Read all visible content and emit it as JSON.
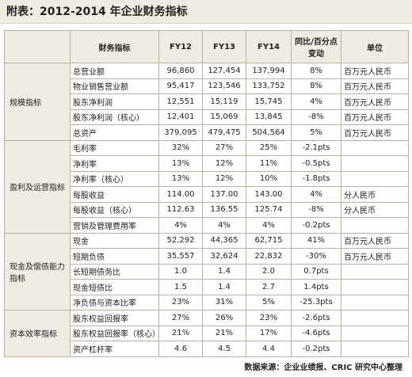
{
  "header": {
    "title": "附表：2012-2014 年企业财务指标"
  },
  "table": {
    "columns": [
      "财务指标",
      "FY12",
      "FY13",
      "FY14",
      "同比/百分点变动",
      "单位"
    ],
    "groups": [
      {
        "name": "规模指标",
        "rows": [
          [
            "总营业额",
            "96,860",
            "127,454",
            "137,994",
            "8%",
            "百万元人民币"
          ],
          [
            "物业销售营业额",
            "95,417",
            "123,546",
            "133,752",
            "8%",
            "百万元人民币"
          ],
          [
            "股东净利润",
            "12,551",
            "15,119",
            "15,745",
            "4%",
            "百万元人民币"
          ],
          [
            "股东净利润（核心）",
            "12,401",
            "15,069",
            "13,845",
            "-8%",
            "百万元人民币"
          ],
          [
            "总资产",
            "379,095",
            "479,475",
            "504,564",
            "5%",
            "百万元人民币"
          ]
        ]
      },
      {
        "name": "盈利及运营指标",
        "rows": [
          [
            "毛利率",
            "32%",
            "27%",
            "25%",
            "-2.1pts"
          ],
          [
            "净利率",
            "13%",
            "12%",
            "11%",
            "-0.5pts"
          ],
          [
            "净利率（核心）",
            "13%",
            "12%",
            "10%",
            "-1.8pts"
          ],
          [
            "每股收益",
            "114.00",
            "137.00",
            "143.00",
            "4%",
            "分人民币"
          ],
          [
            "每股收益（核心）",
            "112.63",
            "136.55",
            "125.74",
            "-8%",
            "分人民币"
          ],
          [
            "营销及管理费用率",
            "4%",
            "4%",
            "4%",
            "-0.2pts"
          ]
        ]
      },
      {
        "name": "现金及偿债能力指标",
        "rows": [
          [
            "现金",
            "52,292",
            "44,365",
            "62,715",
            "41%",
            "百万元人民币"
          ],
          [
            "短期负债",
            "35,557",
            "32,624",
            "22,832",
            "-30%",
            "百万元人民币"
          ],
          [
            "长短期债务比",
            "1.0",
            "1.4",
            "2.0",
            "0.7pts"
          ],
          [
            "现金短债比",
            "1.5",
            "1.4",
            "2.7",
            "1.4pts"
          ],
          [
            "净负债与资本比率",
            "23%",
            "31%",
            "5%",
            "-25.3pts"
          ]
        ]
      },
      {
        "name": "资本效率指标",
        "rows": [
          [
            "股东权益回报率",
            "27%",
            "26%",
            "23%",
            "-2.6pts"
          ],
          [
            "股东权益回报率（核心）",
            "21%",
            "21%",
            "17%",
            "-4.6pts"
          ],
          [
            "资产杠杆率",
            "4.6",
            "4.5",
            "4.4",
            "-0.2pts"
          ]
        ]
      }
    ]
  },
  "footer": {
    "source": "数据来源：企业业绩报、CRIC 研究中心整理"
  }
}
